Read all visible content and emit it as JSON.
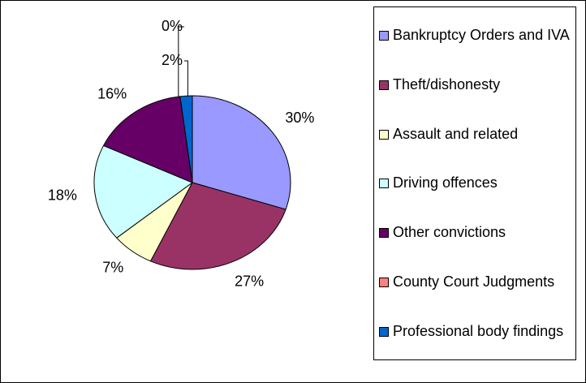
{
  "chart_data": {
    "type": "pie",
    "categories": [
      "Bankruptcy Orders and IVA",
      "Theft/dishonesty",
      "Assault and related",
      "Driving offences",
      "Other convictions",
      "County Court Judgments",
      "Professional body findings"
    ],
    "values": [
      30,
      27,
      7,
      18,
      16,
      0,
      2
    ],
    "value_labels": [
      "30%",
      "27%",
      "7%",
      "18%",
      "16%",
      "0%",
      "2%"
    ],
    "colors": [
      "#9999ff",
      "#993366",
      "#ffffcc",
      "#ccffff",
      "#660066",
      "#ff8080",
      "#0066cc"
    ],
    "legend": "right"
  }
}
